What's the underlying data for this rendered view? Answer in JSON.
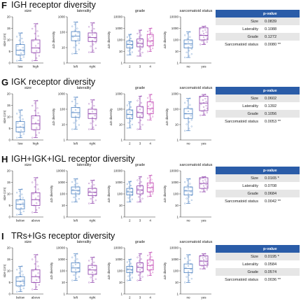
{
  "panels": [
    {
      "letter": "F",
      "title": "IGH receptor diversity",
      "table": {
        "header": "p-value",
        "rows": [
          {
            "label": "Size",
            "value": "0.0839"
          },
          {
            "label": "Laterality",
            "value": "0.1088"
          },
          {
            "label": "Grade",
            "value": "0.1272"
          },
          {
            "label": "Sarcomatoid status",
            "value": "0.0080 **"
          }
        ]
      }
    },
    {
      "letter": "G",
      "title": "IGK receptor diversity",
      "table": {
        "header": "p-value",
        "rows": [
          {
            "label": "Size",
            "value": "0.0602"
          },
          {
            "label": "Laterality",
            "value": "0.1392"
          },
          {
            "label": "Grade",
            "value": "0.1056"
          },
          {
            "label": "Sarcomatoid status",
            "value": "0.0053 **"
          }
        ]
      }
    },
    {
      "letter": "H",
      "title": "IGH+IGK+IGL receptor diversity",
      "table": {
        "header": "p-value",
        "rows": [
          {
            "label": "Size",
            "value": "0.0165 *"
          },
          {
            "label": "Laterality",
            "value": "0.0708"
          },
          {
            "label": "Grade",
            "value": "0.0684"
          },
          {
            "label": "Sarcomatoid status",
            "value": "0.0042 **"
          }
        ]
      }
    },
    {
      "letter": "I",
      "title": "TRs+IGs receptor diversity",
      "table": {
        "header": "p-value",
        "rows": [
          {
            "label": "Size",
            "value": "0.0195 *"
          },
          {
            "label": "Laterality",
            "value": "0.0584"
          },
          {
            "label": "Grade",
            "value": "0.0574"
          },
          {
            "label": "Sarcomatoid status",
            "value": "0.0036 **"
          }
        ]
      }
    }
  ],
  "colors": {
    "blue": "#4a7fc0",
    "purple": "#8a3aa8",
    "magenta": "#c040b0",
    "header": "#2a5ca8"
  },
  "chart_data": [
    {
      "type": "box",
      "panel": "F",
      "subplots": [
        {
          "title": "size",
          "ylabel": "size (cm)",
          "scale": "linear",
          "ylim": [
            0,
            20
          ],
          "yticks": [
            0,
            5,
            10,
            15,
            20
          ],
          "groups": [
            {
              "label": "low",
              "color": "#4a7fc0",
              "min": 1,
              "q1": 3.5,
              "median": 5.5,
              "q3": 8,
              "max": 13
            },
            {
              "label": "high",
              "color": "#8a3aa8",
              "min": 1,
              "q1": 4.5,
              "median": 6.5,
              "q3": 10,
              "max": 17
            }
          ]
        },
        {
          "title": "laterality",
          "ylabel": "ΔD diversity",
          "scale": "log",
          "ylim": [
            1,
            1000
          ],
          "yticks": [
            1,
            10,
            100,
            1000
          ],
          "groups": [
            {
              "label": "left",
              "color": "#4a7fc0",
              "min": 4,
              "q1": 28,
              "median": 55,
              "q3": 110,
              "max": 450
            },
            {
              "label": "right",
              "color": "#8a3aa8",
              "min": 5,
              "q1": 25,
              "median": 45,
              "q3": 90,
              "max": 400
            }
          ]
        },
        {
          "title": "grade",
          "ylabel": "ΔD diversity",
          "scale": "log",
          "ylim": [
            1,
            10000
          ],
          "yticks": [
            1,
            10,
            100,
            1000,
            10000
          ],
          "groups": [
            {
              "label": "2",
              "color": "#4a7fc0",
              "min": 5,
              "q1": 20,
              "median": 40,
              "q3": 80,
              "max": 300
            },
            {
              "label": "3",
              "color": "#8a3aa8",
              "min": 4,
              "q1": 25,
              "median": 50,
              "q3": 120,
              "max": 700
            },
            {
              "label": "4",
              "color": "#c040b0",
              "min": 10,
              "q1": 30,
              "median": 80,
              "q3": 300,
              "max": 1000
            }
          ]
        },
        {
          "title": "sarcomatoid status",
          "ylabel": "ΔD diversity",
          "scale": "log",
          "ylim": [
            1,
            10000
          ],
          "yticks": [
            1,
            10,
            100,
            1000,
            10000
          ],
          "groups": [
            {
              "label": "no",
              "color": "#4a7fc0",
              "min": 3,
              "q1": 20,
              "median": 45,
              "q3": 100,
              "max": 500
            },
            {
              "label": "yes",
              "color": "#8a3aa8",
              "min": 40,
              "q1": 100,
              "median": 250,
              "q3": 1100,
              "max": 1500
            }
          ]
        }
      ]
    },
    {
      "type": "box",
      "panel": "G",
      "subplots": [
        {
          "title": "size",
          "ylabel": "size (cm)",
          "scale": "linear",
          "ylim": [
            0,
            20
          ],
          "yticks": [
            0,
            5,
            10,
            15,
            20
          ],
          "groups": [
            {
              "label": "low",
              "color": "#4a7fc0",
              "min": 1,
              "q1": 3.5,
              "median": 5.5,
              "q3": 8,
              "max": 13
            },
            {
              "label": "high",
              "color": "#8a3aa8",
              "min": 1,
              "q1": 4.5,
              "median": 7,
              "q3": 10.5,
              "max": 17
            }
          ]
        },
        {
          "title": "laterality",
          "ylabel": "ΔD diversity",
          "scale": "log",
          "ylim": [
            1,
            1000
          ],
          "yticks": [
            1,
            10,
            100,
            1000
          ],
          "groups": [
            {
              "label": "left",
              "color": "#4a7fc0",
              "min": 5,
              "q1": 30,
              "median": 60,
              "q3": 130,
              "max": 600
            },
            {
              "label": "right",
              "color": "#8a3aa8",
              "min": 5,
              "q1": 25,
              "median": 50,
              "q3": 100,
              "max": 400
            }
          ]
        },
        {
          "title": "grade",
          "ylabel": "ΔD diversity",
          "scale": "log",
          "ylim": [
            1,
            1000
          ],
          "yticks": [
            1,
            10,
            100,
            1000
          ],
          "groups": [
            {
              "label": "2",
              "color": "#4a7fc0",
              "min": 6,
              "q1": 25,
              "median": 45,
              "q3": 90,
              "max": 300
            },
            {
              "label": "3",
              "color": "#8a3aa8",
              "min": 5,
              "q1": 30,
              "median": 60,
              "q3": 150,
              "max": 700
            },
            {
              "label": "4",
              "color": "#c040b0",
              "min": 20,
              "q1": 50,
              "median": 110,
              "q3": 300,
              "max": 900
            }
          ]
        },
        {
          "title": "sarcomatoid status",
          "ylabel": "ΔD diversity",
          "scale": "log",
          "ylim": [
            1,
            1000
          ],
          "yticks": [
            1,
            10,
            100,
            1000
          ],
          "groups": [
            {
              "label": "no",
              "color": "#4a7fc0",
              "min": 4,
              "q1": 25,
              "median": 50,
              "q3": 110,
              "max": 500
            },
            {
              "label": "yes",
              "color": "#8a3aa8",
              "min": 40,
              "q1": 80,
              "median": 250,
              "q3": 700,
              "max": 900
            }
          ]
        }
      ]
    },
    {
      "type": "box",
      "panel": "H",
      "subplots": [
        {
          "title": "size",
          "ylabel": "size (cm)",
          "scale": "linear",
          "ylim": [
            0,
            20
          ],
          "yticks": [
            0,
            5,
            10,
            15,
            20
          ],
          "groups": [
            {
              "label": "below",
              "color": "#4a7fc0",
              "min": 1,
              "q1": 3.5,
              "median": 5.5,
              "q3": 7.5,
              "max": 12
            },
            {
              "label": "above",
              "color": "#8a3aa8",
              "min": 2,
              "q1": 5,
              "median": 7.5,
              "q3": 10.5,
              "max": 17
            }
          ]
        },
        {
          "title": "laterality",
          "ylabel": "ΔD diversity",
          "scale": "log",
          "ylim": [
            1,
            10000
          ],
          "yticks": [
            1,
            10,
            100,
            1000,
            10000
          ],
          "groups": [
            {
              "label": "left",
              "color": "#4a7fc0",
              "min": 20,
              "q1": 100,
              "median": 200,
              "q3": 400,
              "max": 2000
            },
            {
              "label": "right",
              "color": "#8a3aa8",
              "min": 15,
              "q1": 70,
              "median": 140,
              "q3": 300,
              "max": 1500
            }
          ]
        },
        {
          "title": "grade",
          "ylabel": "ΔD diversity",
          "scale": "log",
          "ylim": [
            1,
            10000
          ],
          "yticks": [
            1,
            10,
            100,
            1000,
            10000
          ],
          "groups": [
            {
              "label": "2",
              "color": "#4a7fc0",
              "min": 20,
              "q1": 80,
              "median": 150,
              "q3": 300,
              "max": 1200
            },
            {
              "label": "3",
              "color": "#8a3aa8",
              "min": 20,
              "q1": 100,
              "median": 220,
              "q3": 500,
              "max": 3000
            },
            {
              "label": "4",
              "color": "#c040b0",
              "min": 60,
              "q1": 150,
              "median": 350,
              "q3": 900,
              "max": 4000
            }
          ]
        },
        {
          "title": "sarcomatoid status",
          "ylabel": "ΔD diversity",
          "scale": "log",
          "ylim": [
            1,
            10000
          ],
          "yticks": [
            1,
            10,
            100,
            1000,
            10000
          ],
          "groups": [
            {
              "label": "no",
              "color": "#4a7fc0",
              "min": 15,
              "q1": 80,
              "median": 180,
              "q3": 400,
              "max": 2000
            },
            {
              "label": "yes",
              "color": "#8a3aa8",
              "min": 150,
              "q1": 300,
              "median": 800,
              "q3": 2500,
              "max": 3000
            }
          ]
        }
      ]
    },
    {
      "type": "box",
      "panel": "I",
      "subplots": [
        {
          "title": "size",
          "ylabel": "size (cm)",
          "scale": "linear",
          "ylim": [
            0,
            20
          ],
          "yticks": [
            0,
            5,
            10,
            15,
            20
          ],
          "groups": [
            {
              "label": "below",
              "color": "#4a7fc0",
              "min": 1,
              "q1": 3.5,
              "median": 5.5,
              "q3": 7.5,
              "max": 12
            },
            {
              "label": "above",
              "color": "#8a3aa8",
              "min": 2,
              "q1": 5,
              "median": 7.5,
              "q3": 10.5,
              "max": 17
            }
          ]
        },
        {
          "title": "laterality",
          "ylabel": "ΔD diversity",
          "scale": "log",
          "ylim": [
            1,
            10000
          ],
          "yticks": [
            1,
            10,
            100,
            1000,
            10000
          ],
          "groups": [
            {
              "label": "left",
              "color": "#4a7fc0",
              "min": 15,
              "q1": 80,
              "median": 180,
              "q3": 500,
              "max": 3000
            },
            {
              "label": "right",
              "color": "#8a3aa8",
              "min": 10,
              "q1": 50,
              "median": 120,
              "q3": 300,
              "max": 1500
            }
          ]
        },
        {
          "title": "grade",
          "ylabel": "ΔD diversity",
          "scale": "log",
          "ylim": [
            1,
            10000
          ],
          "yticks": [
            1,
            10,
            100,
            1000,
            10000
          ],
          "groups": [
            {
              "label": "2",
              "color": "#4a7fc0",
              "min": 15,
              "q1": 70,
              "median": 130,
              "q3": 250,
              "max": 1000
            },
            {
              "label": "3",
              "color": "#8a3aa8",
              "min": 15,
              "q1": 80,
              "median": 200,
              "q3": 500,
              "max": 3000
            },
            {
              "label": "4",
              "color": "#c040b0",
              "min": 40,
              "q1": 120,
              "median": 300,
              "q3": 900,
              "max": 4000
            }
          ]
        },
        {
          "title": "sarcomatoid status",
          "ylabel": "ΔD diversity",
          "scale": "log",
          "ylim": [
            1,
            10000
          ],
          "yticks": [
            1,
            10,
            100,
            1000,
            10000
          ],
          "groups": [
            {
              "label": "no",
              "color": "#4a7fc0",
              "min": 10,
              "q1": 70,
              "median": 160,
              "q3": 400,
              "max": 2500
            },
            {
              "label": "yes",
              "color": "#8a3aa8",
              "min": 150,
              "q1": 300,
              "median": 700,
              "q3": 2000,
              "max": 3000
            }
          ]
        }
      ]
    }
  ]
}
